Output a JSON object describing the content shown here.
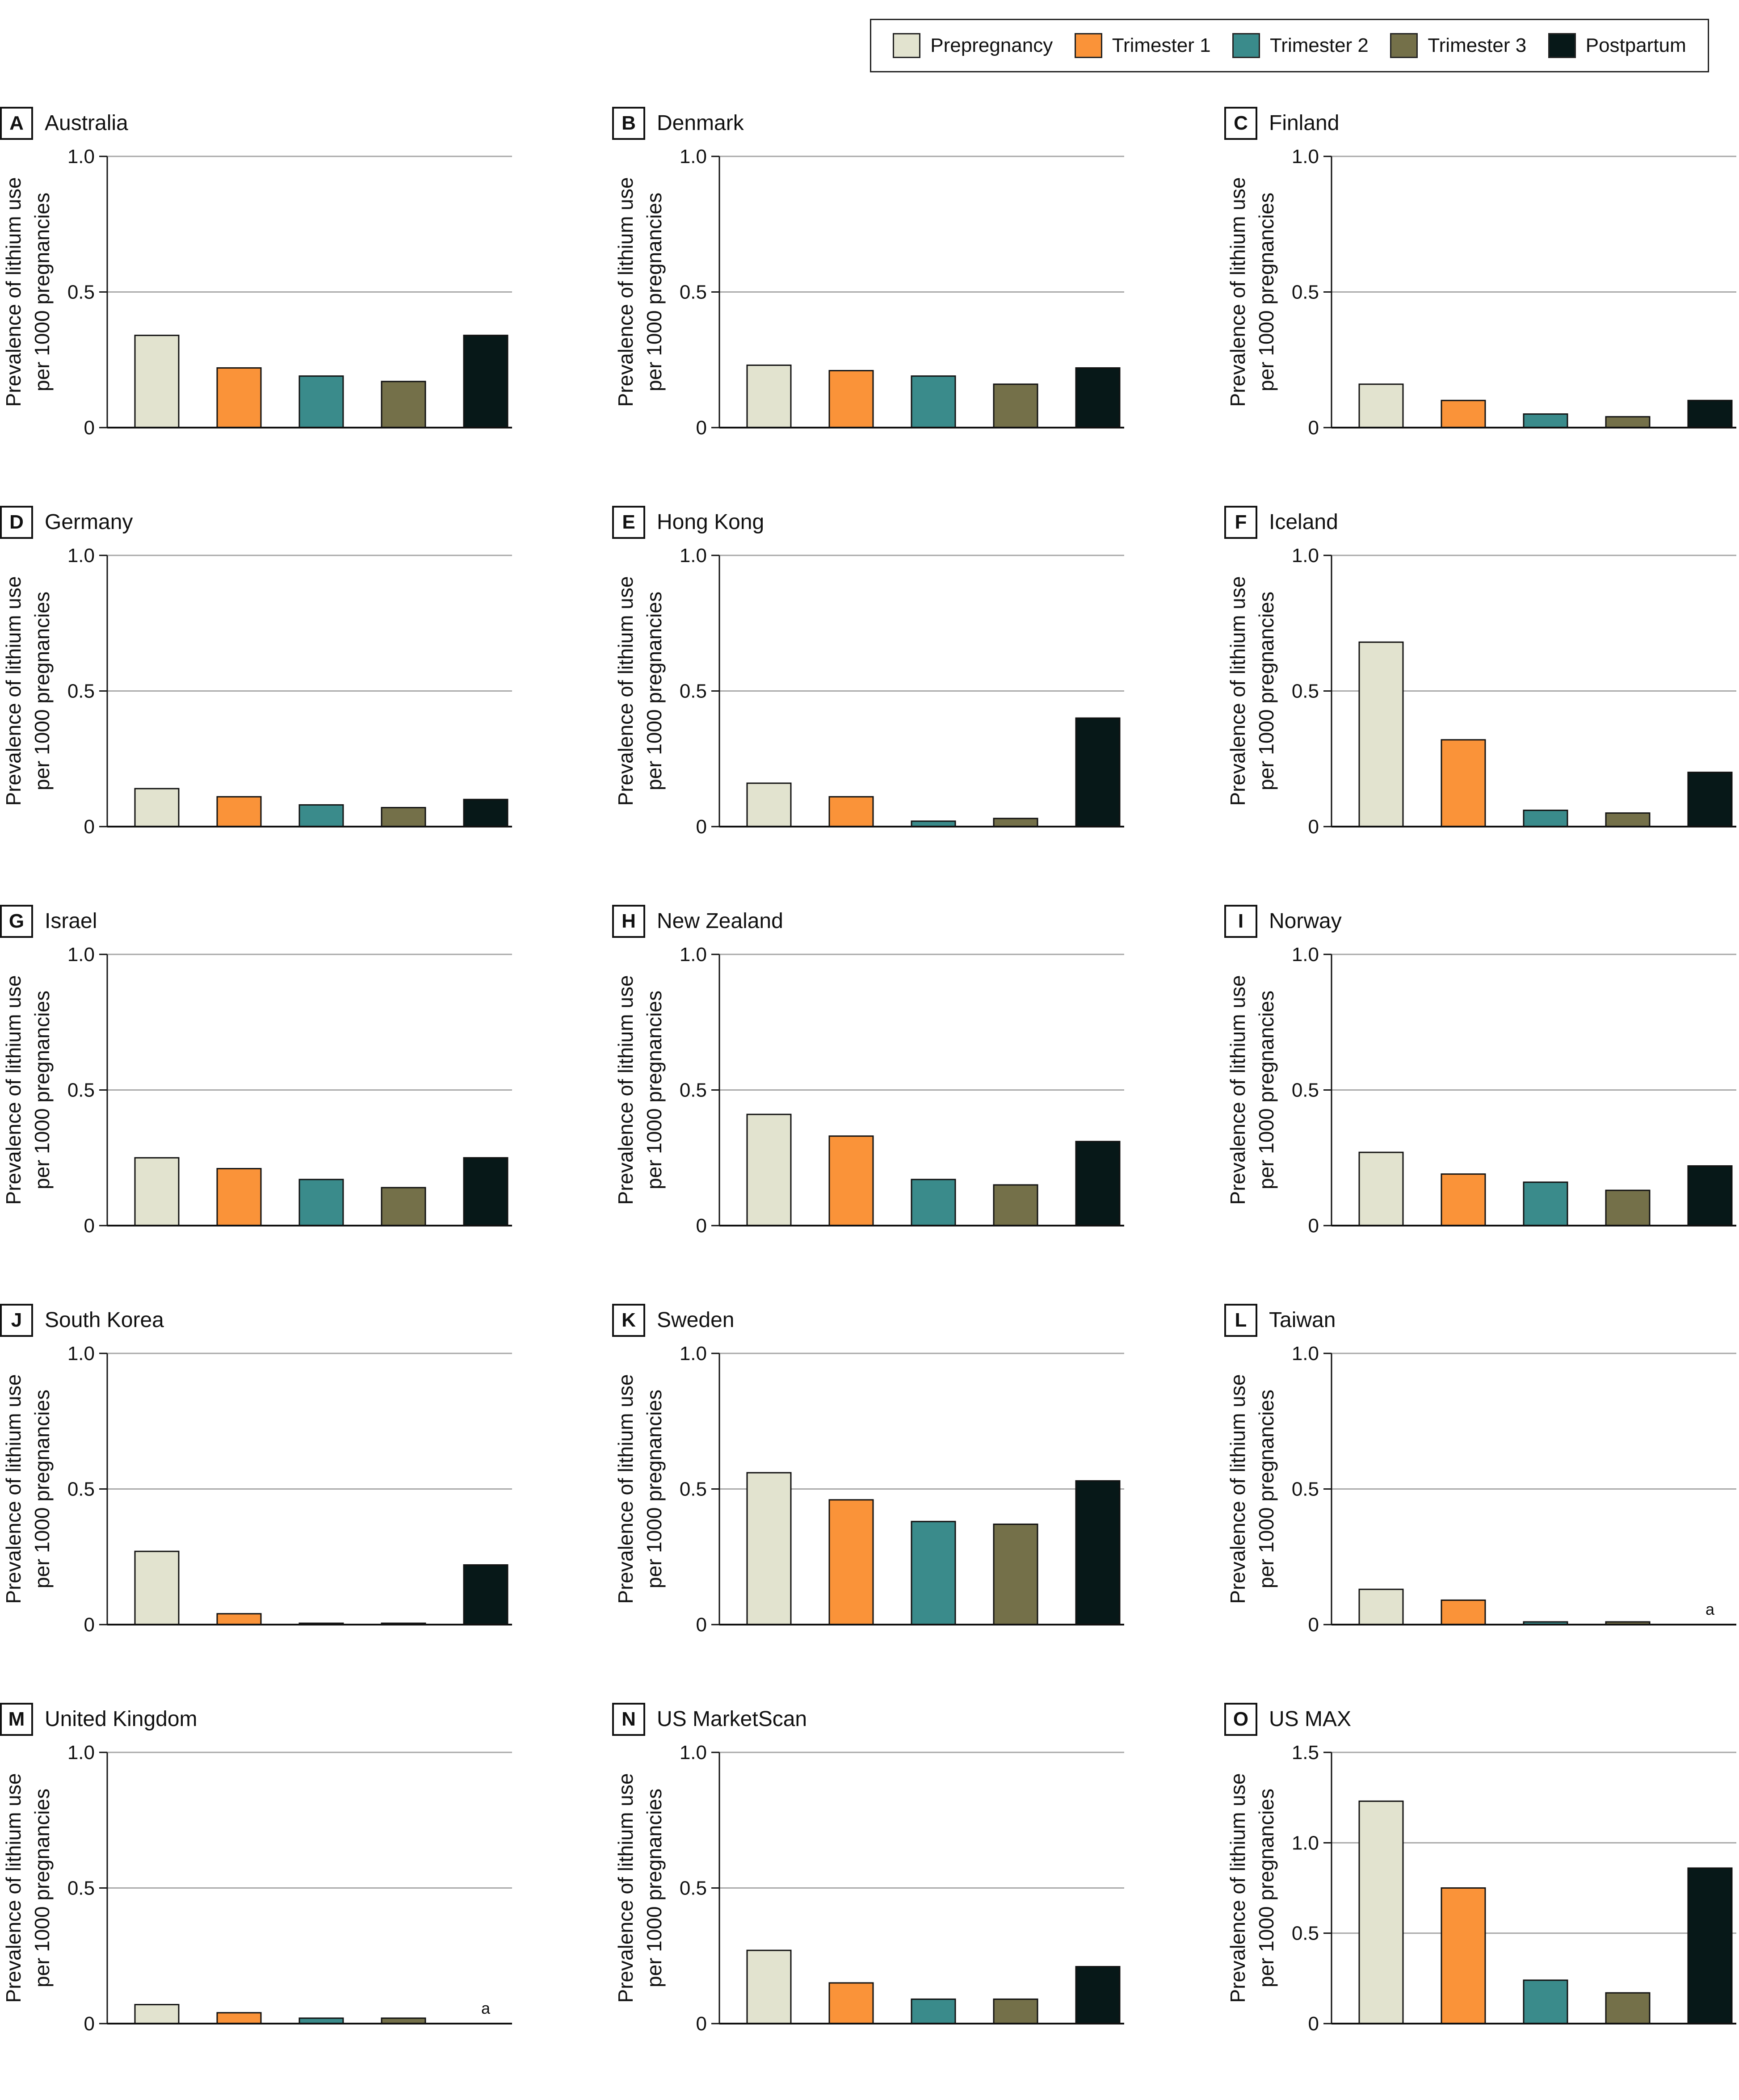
{
  "legend": {
    "items": [
      {
        "label": "Prepregnancy",
        "color": "#e2e3cf"
      },
      {
        "label": "Trimester 1",
        "color": "#fa9339"
      },
      {
        "label": "Trimester 2",
        "color": "#3a8b8b"
      },
      {
        "label": "Trimester 3",
        "color": "#747049"
      },
      {
        "label": "Postpartum",
        "color": "#071818"
      }
    ]
  },
  "chart_data": [
    {
      "type": "bar",
      "panel_letter": "A",
      "title": "Australia",
      "categories": [
        "Prepregnancy",
        "Trimester 1",
        "Trimester 2",
        "Trimester 3",
        "Postpartum"
      ],
      "values": [
        0.34,
        0.22,
        0.19,
        0.17,
        0.34
      ],
      "ylabel": [
        "Prevalence of lithium use",
        "per 1000 pregnancies"
      ],
      "ylim": [
        0,
        1.0
      ],
      "yticks": [
        {
          "value": 0,
          "label": "0"
        },
        {
          "value": 0.5,
          "label": "0.5"
        },
        {
          "value": 1.0,
          "label": "1.0"
        }
      ],
      "annotation": "",
      "grid": true
    },
    {
      "type": "bar",
      "panel_letter": "B",
      "title": "Denmark",
      "categories": [
        "Prepregnancy",
        "Trimester 1",
        "Trimester 2",
        "Trimester 3",
        "Postpartum"
      ],
      "values": [
        0.23,
        0.21,
        0.19,
        0.16,
        0.22
      ],
      "ylabel": [
        "Prevalence of lithium use",
        "per 1000 pregnancies"
      ],
      "ylim": [
        0,
        1.0
      ],
      "yticks": [
        {
          "value": 0,
          "label": "0"
        },
        {
          "value": 0.5,
          "label": "0.5"
        },
        {
          "value": 1.0,
          "label": "1.0"
        }
      ],
      "annotation": "",
      "grid": true
    },
    {
      "type": "bar",
      "panel_letter": "C",
      "title": "Finland",
      "categories": [
        "Prepregnancy",
        "Trimester 1",
        "Trimester 2",
        "Trimester 3",
        "Postpartum"
      ],
      "values": [
        0.16,
        0.1,
        0.05,
        0.04,
        0.1
      ],
      "ylabel": [
        "Prevalence of lithium use",
        "per 1000 pregnancies"
      ],
      "ylim": [
        0,
        1.0
      ],
      "yticks": [
        {
          "value": 0,
          "label": "0"
        },
        {
          "value": 0.5,
          "label": "0.5"
        },
        {
          "value": 1.0,
          "label": "1.0"
        }
      ],
      "annotation": "",
      "grid": true
    },
    {
      "type": "bar",
      "panel_letter": "D",
      "title": "Germany",
      "categories": [
        "Prepregnancy",
        "Trimester 1",
        "Trimester 2",
        "Trimester 3",
        "Postpartum"
      ],
      "values": [
        0.14,
        0.11,
        0.08,
        0.07,
        0.1
      ],
      "ylabel": [
        "Prevalence of lithium use",
        "per 1000 pregnancies"
      ],
      "ylim": [
        0,
        1.0
      ],
      "yticks": [
        {
          "value": 0,
          "label": "0"
        },
        {
          "value": 0.5,
          "label": "0.5"
        },
        {
          "value": 1.0,
          "label": "1.0"
        }
      ],
      "annotation": "",
      "grid": true
    },
    {
      "type": "bar",
      "panel_letter": "E",
      "title": "Hong Kong",
      "categories": [
        "Prepregnancy",
        "Trimester 1",
        "Trimester 2",
        "Trimester 3",
        "Postpartum"
      ],
      "values": [
        0.16,
        0.11,
        0.02,
        0.03,
        0.4
      ],
      "ylabel": [
        "Prevalence of lithium use",
        "per 1000 pregnancies"
      ],
      "ylim": [
        0,
        1.0
      ],
      "yticks": [
        {
          "value": 0,
          "label": "0"
        },
        {
          "value": 0.5,
          "label": "0.5"
        },
        {
          "value": 1.0,
          "label": "1.0"
        }
      ],
      "annotation": "",
      "grid": true
    },
    {
      "type": "bar",
      "panel_letter": "F",
      "title": "Iceland",
      "categories": [
        "Prepregnancy",
        "Trimester 1",
        "Trimester 2",
        "Trimester 3",
        "Postpartum"
      ],
      "values": [
        0.68,
        0.32,
        0.06,
        0.05,
        0.2
      ],
      "ylabel": [
        "Prevalence of lithium use",
        "per 1000 pregnancies"
      ],
      "ylim": [
        0,
        1.0
      ],
      "yticks": [
        {
          "value": 0,
          "label": "0"
        },
        {
          "value": 0.5,
          "label": "0.5"
        },
        {
          "value": 1.0,
          "label": "1.0"
        }
      ],
      "annotation": "",
      "grid": true
    },
    {
      "type": "bar",
      "panel_letter": "G",
      "title": "Israel",
      "categories": [
        "Prepregnancy",
        "Trimester 1",
        "Trimester 2",
        "Trimester 3",
        "Postpartum"
      ],
      "values": [
        0.25,
        0.21,
        0.17,
        0.14,
        0.25
      ],
      "ylabel": [
        "Prevalence of lithium use",
        "per 1000 pregnancies"
      ],
      "ylim": [
        0,
        1.0
      ],
      "yticks": [
        {
          "value": 0,
          "label": "0"
        },
        {
          "value": 0.5,
          "label": "0.5"
        },
        {
          "value": 1.0,
          "label": "1.0"
        }
      ],
      "annotation": "",
      "grid": true
    },
    {
      "type": "bar",
      "panel_letter": "H",
      "title": "New Zealand",
      "categories": [
        "Prepregnancy",
        "Trimester 1",
        "Trimester 2",
        "Trimester 3",
        "Postpartum"
      ],
      "values": [
        0.41,
        0.33,
        0.17,
        0.15,
        0.31
      ],
      "ylabel": [
        "Prevalence of lithium use",
        "per 1000 pregnancies"
      ],
      "ylim": [
        0,
        1.0
      ],
      "yticks": [
        {
          "value": 0,
          "label": "0"
        },
        {
          "value": 0.5,
          "label": "0.5"
        },
        {
          "value": 1.0,
          "label": "1.0"
        }
      ],
      "annotation": "",
      "grid": true
    },
    {
      "type": "bar",
      "panel_letter": "I",
      "title": "Norway",
      "categories": [
        "Prepregnancy",
        "Trimester 1",
        "Trimester 2",
        "Trimester 3",
        "Postpartum"
      ],
      "values": [
        0.27,
        0.19,
        0.16,
        0.13,
        0.22
      ],
      "ylabel": [
        "Prevalence of lithium use",
        "per 1000 pregnancies"
      ],
      "ylim": [
        0,
        1.0
      ],
      "yticks": [
        {
          "value": 0,
          "label": "0"
        },
        {
          "value": 0.5,
          "label": "0.5"
        },
        {
          "value": 1.0,
          "label": "1.0"
        }
      ],
      "annotation": "",
      "grid": true
    },
    {
      "type": "bar",
      "panel_letter": "J",
      "title": "South Korea",
      "categories": [
        "Prepregnancy",
        "Trimester 1",
        "Trimester 2",
        "Trimester 3",
        "Postpartum"
      ],
      "values": [
        0.27,
        0.04,
        0.005,
        0.005,
        0.22
      ],
      "ylabel": [
        "Prevalence of lithium use",
        "per 1000 pregnancies"
      ],
      "ylim": [
        0,
        1.0
      ],
      "yticks": [
        {
          "value": 0,
          "label": "0"
        },
        {
          "value": 0.5,
          "label": "0.5"
        },
        {
          "value": 1.0,
          "label": "1.0"
        }
      ],
      "annotation": "",
      "grid": true
    },
    {
      "type": "bar",
      "panel_letter": "K",
      "title": "Sweden",
      "categories": [
        "Prepregnancy",
        "Trimester 1",
        "Trimester 2",
        "Trimester 3",
        "Postpartum"
      ],
      "values": [
        0.56,
        0.46,
        0.38,
        0.37,
        0.53
      ],
      "ylabel": [
        "Prevalence of lithium use",
        "per 1000 pregnancies"
      ],
      "ylim": [
        0,
        1.0
      ],
      "yticks": [
        {
          "value": 0,
          "label": "0"
        },
        {
          "value": 0.5,
          "label": "0.5"
        },
        {
          "value": 1.0,
          "label": "1.0"
        }
      ],
      "annotation": "",
      "grid": true
    },
    {
      "type": "bar",
      "panel_letter": "L",
      "title": "Taiwan",
      "categories": [
        "Prepregnancy",
        "Trimester 1",
        "Trimester 2",
        "Trimester 3",
        "Postpartum"
      ],
      "values": [
        0.13,
        0.09,
        0.01,
        0.01,
        null
      ],
      "ylabel": [
        "Prevalence of lithium use",
        "per 1000 pregnancies"
      ],
      "ylim": [
        0,
        1.0
      ],
      "yticks": [
        {
          "value": 0,
          "label": "0"
        },
        {
          "value": 0.5,
          "label": "0.5"
        },
        {
          "value": 1.0,
          "label": "1.0"
        }
      ],
      "annotation": "a",
      "grid": true
    },
    {
      "type": "bar",
      "panel_letter": "M",
      "title": "United Kingdom",
      "categories": [
        "Prepregnancy",
        "Trimester 1",
        "Trimester 2",
        "Trimester 3",
        "Postpartum"
      ],
      "values": [
        0.07,
        0.04,
        0.02,
        0.02,
        null
      ],
      "ylabel": [
        "Prevalence of lithium use",
        "per 1000 pregnancies"
      ],
      "ylim": [
        0,
        1.0
      ],
      "yticks": [
        {
          "value": 0,
          "label": "0"
        },
        {
          "value": 0.5,
          "label": "0.5"
        },
        {
          "value": 1.0,
          "label": "1.0"
        }
      ],
      "annotation": "a",
      "grid": true
    },
    {
      "type": "bar",
      "panel_letter": "N",
      "title": "US MarketScan",
      "categories": [
        "Prepregnancy",
        "Trimester 1",
        "Trimester 2",
        "Trimester 3",
        "Postpartum"
      ],
      "values": [
        0.27,
        0.15,
        0.09,
        0.09,
        0.21
      ],
      "ylabel": [
        "Prevalence of lithium use",
        "per 1000 pregnancies"
      ],
      "ylim": [
        0,
        1.0
      ],
      "yticks": [
        {
          "value": 0,
          "label": "0"
        },
        {
          "value": 0.5,
          "label": "0.5"
        },
        {
          "value": 1.0,
          "label": "1.0"
        }
      ],
      "annotation": "",
      "grid": true
    },
    {
      "type": "bar",
      "panel_letter": "O",
      "title": "US MAX",
      "categories": [
        "Prepregnancy",
        "Trimester 1",
        "Trimester 2",
        "Trimester 3",
        "Postpartum"
      ],
      "values": [
        1.23,
        0.75,
        0.24,
        0.17,
        0.86
      ],
      "ylabel": [
        "Prevalence of lithium use",
        "per 1000 pregnancies"
      ],
      "ylim": [
        0,
        1.5
      ],
      "yticks": [
        {
          "value": 0,
          "label": "0"
        },
        {
          "value": 0.5,
          "label": "0.5"
        },
        {
          "value": 1.0,
          "label": "1.0"
        },
        {
          "value": 1.5,
          "label": "1.5"
        }
      ],
      "annotation": "",
      "grid": true
    }
  ]
}
